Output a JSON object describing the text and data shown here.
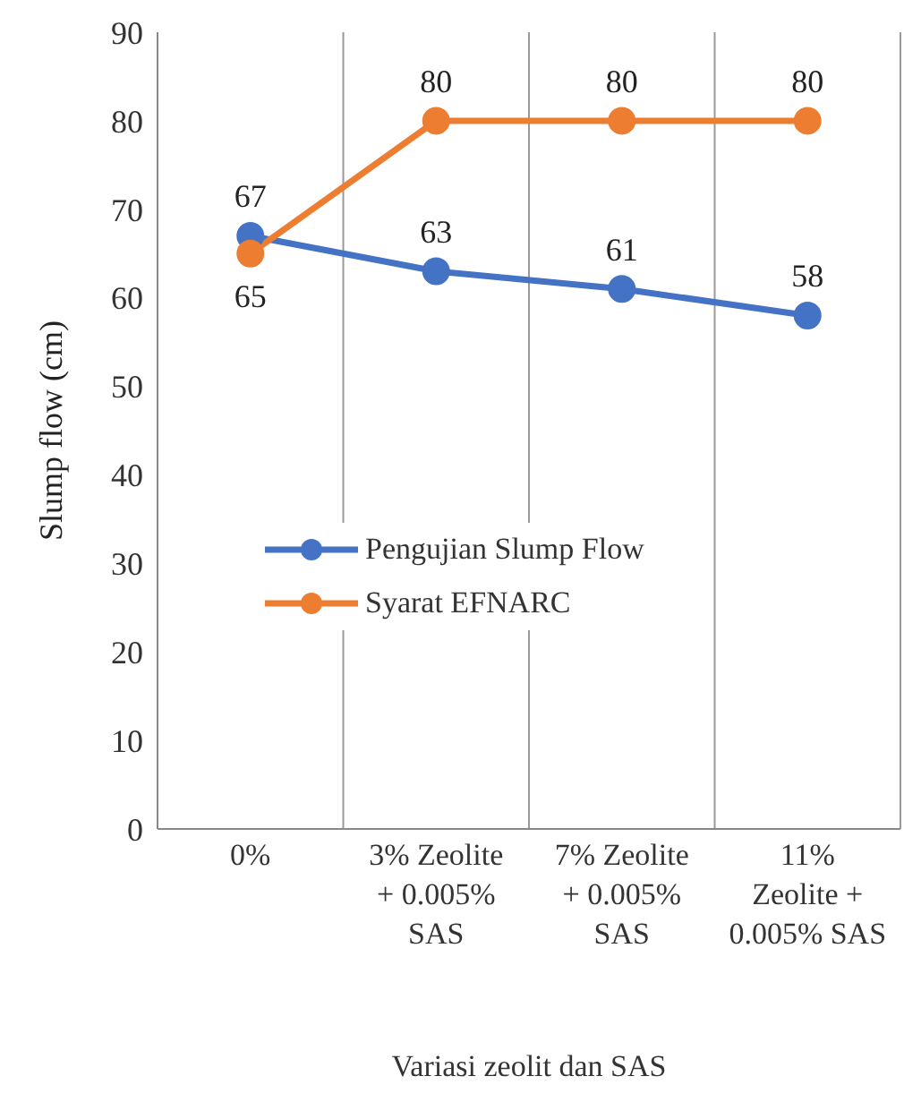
{
  "chart_data": {
    "type": "line",
    "xlabel": "Variasi zeolit dan SAS",
    "ylabel": "Slump flow (cm)",
    "categories": [
      "0%",
      "3% Zeolite + 0.005% SAS",
      "7% Zeolite + 0.005% SAS",
      "11% Zeolite + 0.005% SAS"
    ],
    "series": [
      {
        "name": "Pengujian Slump Flow",
        "color": "#4472c4",
        "values": [
          67,
          63,
          61,
          58
        ]
      },
      {
        "name": "Syarat EFNARC",
        "color": "#ed7d31",
        "values": [
          65,
          80,
          80,
          80
        ]
      }
    ],
    "ylim": [
      0,
      90
    ],
    "yticks": [
      0,
      10,
      20,
      30,
      40,
      50,
      60,
      70,
      80,
      90
    ],
    "grid": "x",
    "legend": "left",
    "marker": "circle",
    "data_labels": true
  }
}
